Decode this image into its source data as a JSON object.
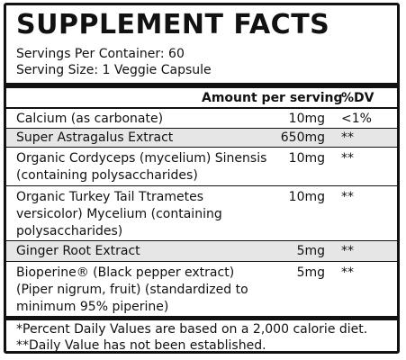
{
  "title": "SUPPLEMENT FACTS",
  "servings_per_container": "Servings Per Container: 60",
  "serving_size": "Serving Size: 1 Veggie Capsule",
  "header": {
    "amount": "Amount per serving",
    "dv": "%DV"
  },
  "rows": [
    {
      "name": "Calcium  (as carbonate)",
      "amount": "10mg",
      "dv": "<1%"
    },
    {
      "name": "Super Astragalus Extract",
      "amount": "650mg",
      "dv": "**"
    },
    {
      "name": "Organic Cordyceps (mycelium) Sinensis (containing polysaccharides)",
      "amount": "10mg",
      "dv": "**"
    },
    {
      "name": "Organic Turkey Tail Ttrametes versicolor) Mycelium (containing polysaccharides)",
      "amount": "10mg",
      "dv": "**"
    },
    {
      "name": "Ginger Root Extract",
      "amount": "5mg",
      "dv": "**"
    },
    {
      "name": "Bioperine® (Black pepper extract) (Piper nigrum, fruit) (standardized to minimum 95% piperine)",
      "amount": "5mg",
      "dv": "**"
    }
  ],
  "footnotes": [
    "*Percent Daily Values are based on a 2,000 calorie diet.",
    "**Daily Value has not been established."
  ]
}
